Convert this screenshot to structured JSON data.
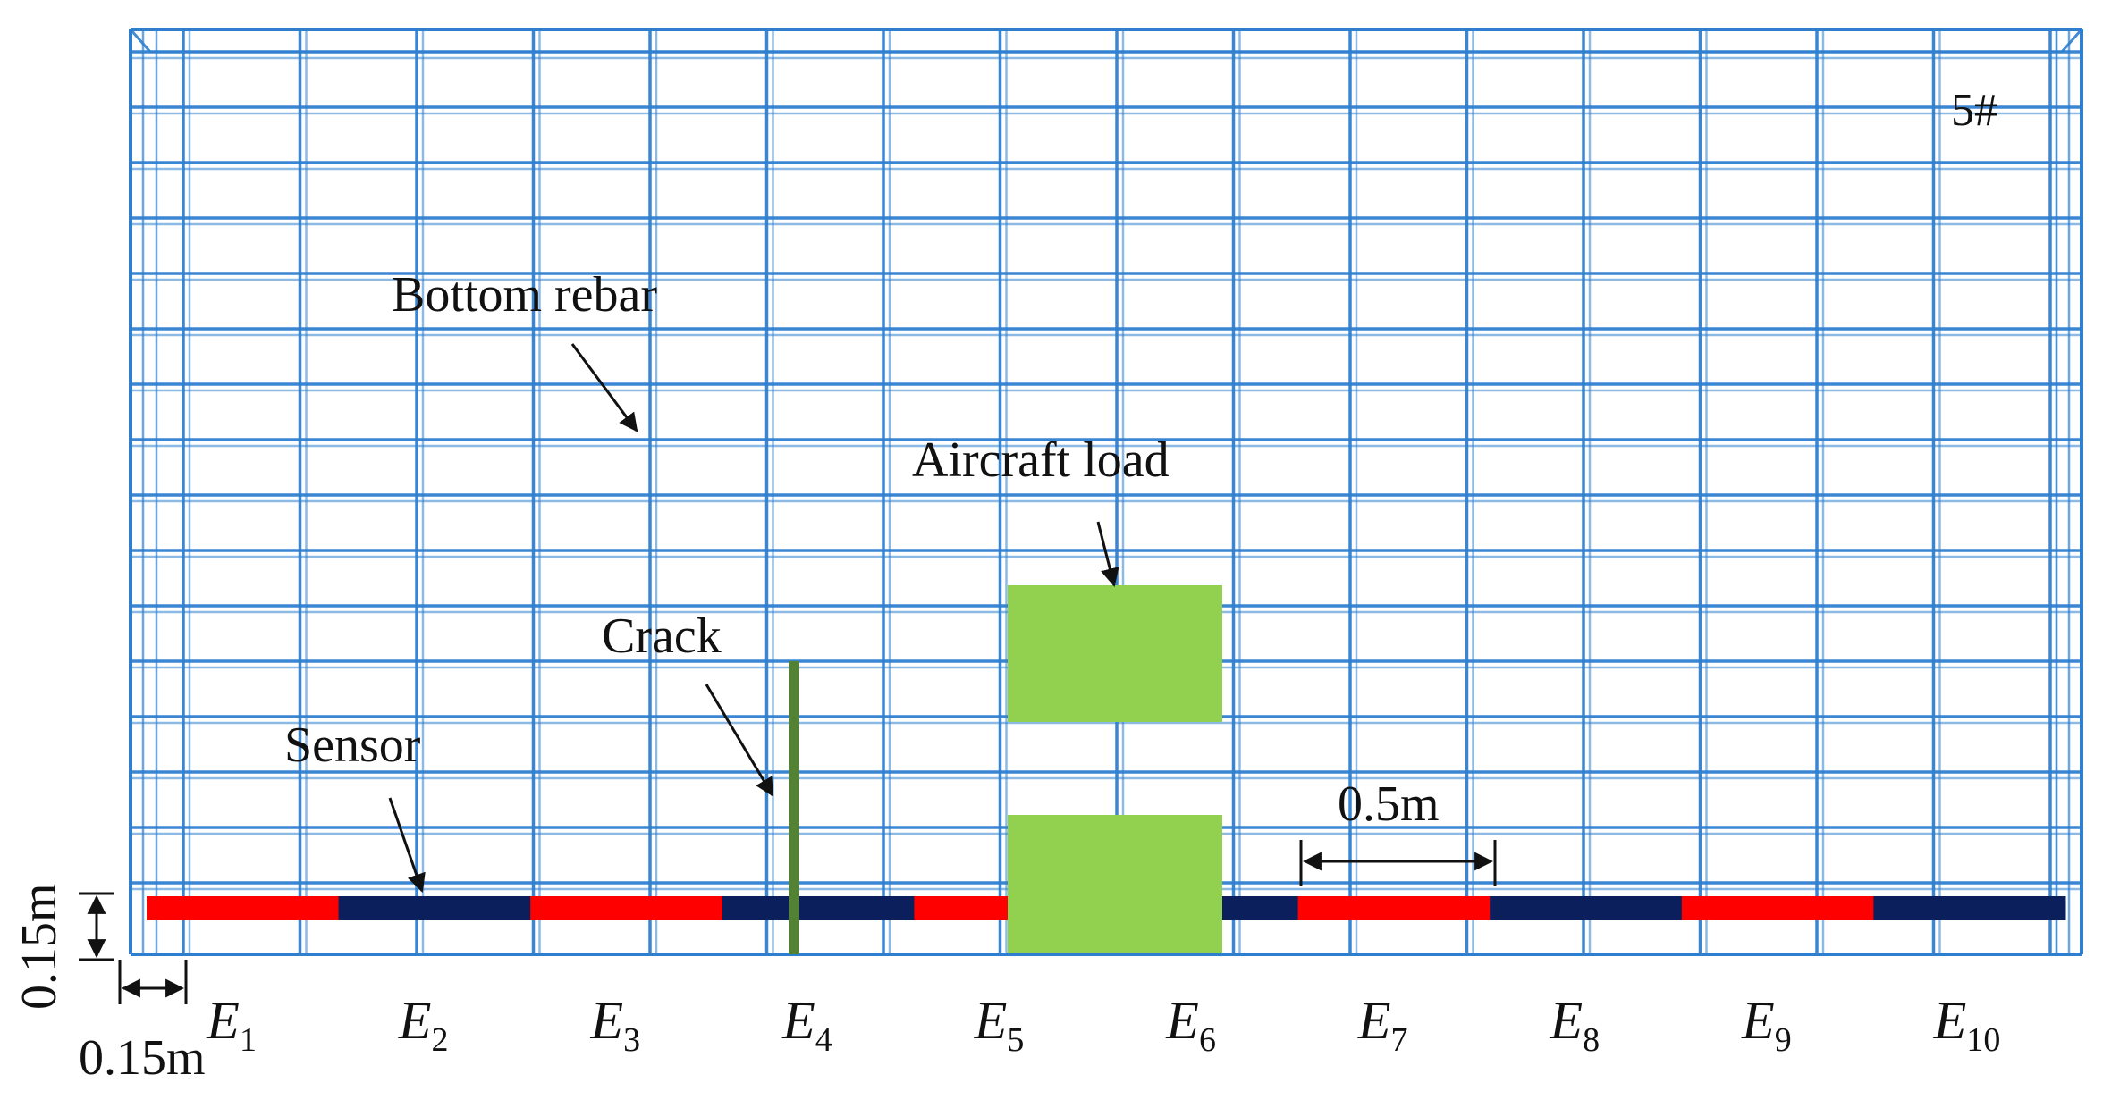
{
  "labels": {
    "slab_id": "5#",
    "bottom_rebar": "Bottom rebar",
    "aircraft_load": "Aircraft load",
    "crack": "Crack",
    "sensor": "Sensor",
    "spacing": "0.5m",
    "offset_vertical": "0.15m",
    "offset_horizontal": "0.15m"
  },
  "sensors": [
    {
      "letter": "E",
      "sub": "1",
      "color": "#ff0000"
    },
    {
      "letter": "E",
      "sub": "2",
      "color": "#0a1f5c"
    },
    {
      "letter": "E",
      "sub": "3",
      "color": "#ff0000"
    },
    {
      "letter": "E",
      "sub": "4",
      "color": "#0a1f5c"
    },
    {
      "letter": "E",
      "sub": "5",
      "color": "#ff0000"
    },
    {
      "letter": "E",
      "sub": "6",
      "color": "#0a1f5c"
    },
    {
      "letter": "E",
      "sub": "7",
      "color": "#ff0000"
    },
    {
      "letter": "E",
      "sub": "8",
      "color": "#0a1f5c"
    },
    {
      "letter": "E",
      "sub": "9",
      "color": "#ff0000"
    },
    {
      "letter": "E",
      "sub": "10",
      "color": "#0a1f5c"
    }
  ],
  "colors": {
    "rebar": "#2f7fd0",
    "load": "#92d050",
    "crack": "#548235",
    "sensor_red": "#ff0000",
    "sensor_navy": "#0a1f5c"
  }
}
